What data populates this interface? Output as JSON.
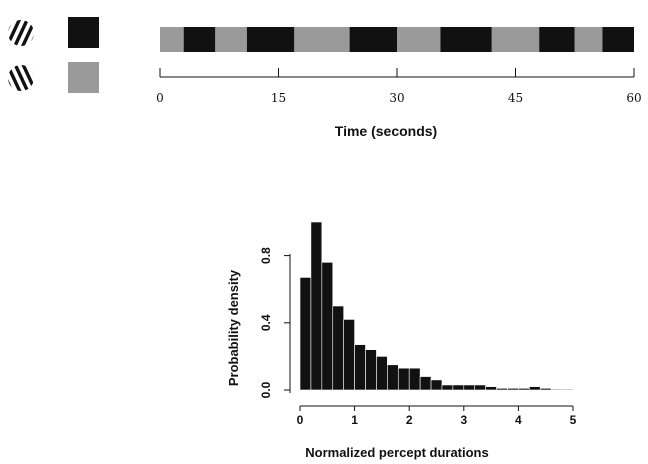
{
  "colors": {
    "dark": "#111111",
    "gray": "#9a9a9a",
    "bar": "#111111",
    "axis": "#111111"
  },
  "legend": [
    {
      "icon": "left-tilted-stripes-grating-icon",
      "color": "#111111"
    },
    {
      "icon": "right-tilted-stripes-grating-icon",
      "color": "#9a9a9a"
    }
  ],
  "chart_data": [
    {
      "type": "timeline",
      "xlabel": "Time (seconds)",
      "xlim": [
        0,
        60
      ],
      "ticks": [
        0,
        15,
        30,
        45,
        60
      ],
      "tick_labels": [
        "0",
        "15",
        "30",
        "45",
        "60"
      ],
      "segments": [
        {
          "start": 0,
          "end": 3,
          "percept": "gray"
        },
        {
          "start": 3,
          "end": 7,
          "percept": "dark"
        },
        {
          "start": 7,
          "end": 11,
          "percept": "gray"
        },
        {
          "start": 11,
          "end": 17,
          "percept": "dark"
        },
        {
          "start": 17,
          "end": 24,
          "percept": "gray"
        },
        {
          "start": 24,
          "end": 30,
          "percept": "dark"
        },
        {
          "start": 30,
          "end": 35.5,
          "percept": "gray"
        },
        {
          "start": 35.5,
          "end": 42,
          "percept": "dark"
        },
        {
          "start": 42,
          "end": 48,
          "percept": "gray"
        },
        {
          "start": 48,
          "end": 52.5,
          "percept": "dark"
        },
        {
          "start": 52.5,
          "end": 56,
          "percept": "gray"
        },
        {
          "start": 56,
          "end": 60,
          "percept": "dark"
        }
      ]
    },
    {
      "type": "bar",
      "subtype": "histogram",
      "xlabel": "Normalized percept durations",
      "ylabel": "Probability density",
      "xlim": [
        0,
        5
      ],
      "ylim": [
        0,
        1.0
      ],
      "xticks": [
        0,
        1,
        2,
        3,
        4,
        5
      ],
      "yticks": [
        0.0,
        0.4,
        0.8
      ],
      "ytick_labels": [
        "0.0",
        "0.4",
        "0.8"
      ],
      "bin_width": 0.2,
      "bin_starts": [
        0.0,
        0.2,
        0.4,
        0.6,
        0.8,
        1.0,
        1.2,
        1.4,
        1.6,
        1.8,
        2.0,
        2.2,
        2.4,
        2.6,
        2.8,
        3.0,
        3.2,
        3.4,
        3.6,
        3.8,
        4.0,
        4.2,
        4.4,
        4.6,
        4.8
      ],
      "values": [
        0.67,
        1.0,
        0.76,
        0.5,
        0.42,
        0.27,
        0.24,
        0.2,
        0.15,
        0.13,
        0.13,
        0.08,
        0.06,
        0.03,
        0.03,
        0.03,
        0.03,
        0.02,
        0.01,
        0.01,
        0.01,
        0.02,
        0.01,
        0.005,
        0.005
      ]
    }
  ]
}
